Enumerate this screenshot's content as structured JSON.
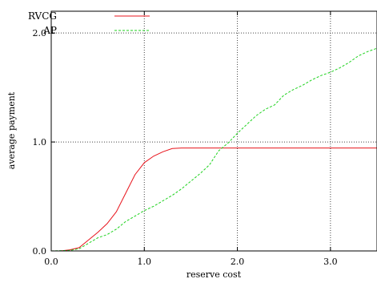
{
  "chart_data": {
    "type": "line",
    "title": "",
    "xlabel": "reserve cost",
    "ylabel": "average payment",
    "xlim": [
      0,
      3.5
    ],
    "ylim": [
      0,
      2.2
    ],
    "x_ticks": [
      0.0,
      1.0,
      2.0,
      3.0
    ],
    "x_tick_labels": [
      "0.0",
      "1.0",
      "2.0",
      "3.0"
    ],
    "y_ticks": [
      0.0,
      1.0,
      2.0
    ],
    "y_tick_labels": [
      "0.0",
      "1.0",
      "2.0"
    ],
    "grid": true,
    "legend_position": "top-left",
    "series": [
      {
        "name": "RVCG",
        "color": "#e8141c",
        "dash": "solid",
        "points": [
          [
            0.0,
            0.0
          ],
          [
            0.1,
            0.0
          ],
          [
            0.2,
            0.01
          ],
          [
            0.3,
            0.03
          ],
          [
            0.4,
            0.1
          ],
          [
            0.5,
            0.17
          ],
          [
            0.6,
            0.25
          ],
          [
            0.7,
            0.36
          ],
          [
            0.8,
            0.53
          ],
          [
            0.9,
            0.7
          ],
          [
            1.0,
            0.81
          ],
          [
            1.1,
            0.87
          ],
          [
            1.2,
            0.91
          ],
          [
            1.3,
            0.94
          ],
          [
            1.4,
            0.945
          ],
          [
            1.6,
            0.945
          ],
          [
            2.0,
            0.945
          ],
          [
            2.5,
            0.945
          ],
          [
            3.0,
            0.945
          ],
          [
            3.5,
            0.945
          ]
        ]
      },
      {
        "name": "AP",
        "color": "#1ed21e",
        "dash": "dashed",
        "points": [
          [
            0.0,
            0.0
          ],
          [
            0.2,
            0.005
          ],
          [
            0.3,
            0.02
          ],
          [
            0.4,
            0.07
          ],
          [
            0.5,
            0.12
          ],
          [
            0.6,
            0.15
          ],
          [
            0.7,
            0.2
          ],
          [
            0.8,
            0.27
          ],
          [
            0.9,
            0.32
          ],
          [
            1.0,
            0.37
          ],
          [
            1.1,
            0.41
          ],
          [
            1.2,
            0.46
          ],
          [
            1.3,
            0.51
          ],
          [
            1.4,
            0.57
          ],
          [
            1.5,
            0.64
          ],
          [
            1.6,
            0.71
          ],
          [
            1.7,
            0.79
          ],
          [
            1.8,
            0.92
          ],
          [
            1.9,
            0.99
          ],
          [
            2.0,
            1.08
          ],
          [
            2.1,
            1.16
          ],
          [
            2.2,
            1.24
          ],
          [
            2.3,
            1.3
          ],
          [
            2.4,
            1.34
          ],
          [
            2.5,
            1.43
          ],
          [
            2.6,
            1.48
          ],
          [
            2.7,
            1.52
          ],
          [
            2.8,
            1.57
          ],
          [
            2.9,
            1.61
          ],
          [
            3.0,
            1.64
          ],
          [
            3.1,
            1.68
          ],
          [
            3.2,
            1.73
          ],
          [
            3.3,
            1.79
          ],
          [
            3.4,
            1.83
          ],
          [
            3.5,
            1.86
          ]
        ]
      }
    ]
  }
}
